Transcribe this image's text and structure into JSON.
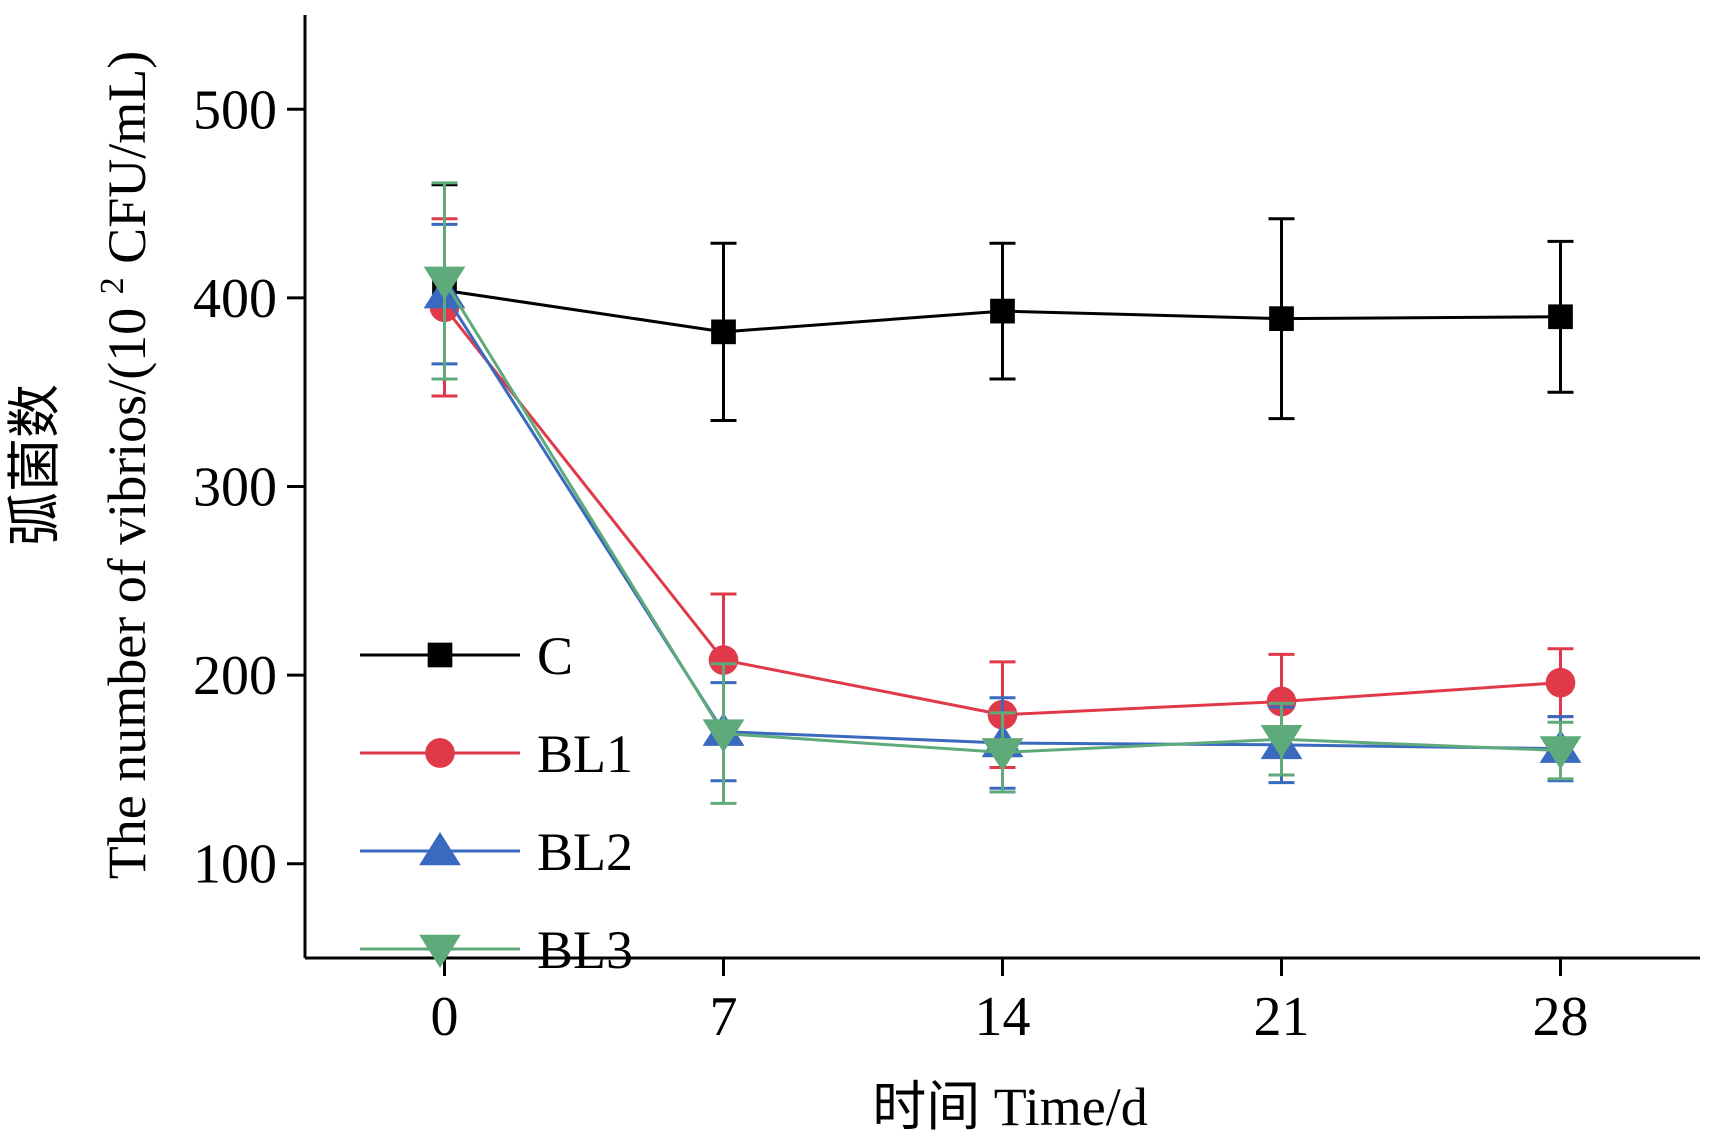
{
  "chart_data": {
    "type": "line",
    "xlabel": "时间 Time/d",
    "ylabel": {
      "prefix": "The number of vibrios/(10 ",
      "sup": "2",
      "suffix": " CFU/mL)",
      "line2": "弧菌数"
    },
    "x": [
      0,
      7,
      14,
      21,
      28
    ],
    "x_tick_labels": [
      "0",
      "7",
      "14",
      "21",
      "28"
    ],
    "xlim": [
      -3.5,
      31.5
    ],
    "ylim": [
      50,
      550
    ],
    "y_ticks": [
      100,
      200,
      300,
      400,
      500
    ],
    "y_tick_labels": [
      "100",
      "200",
      "300",
      "400",
      "500"
    ],
    "grid": false,
    "legend_position": "lower-left",
    "series": [
      {
        "name": "C",
        "color": "#000000",
        "marker": "square",
        "values": [
          404,
          382,
          393,
          389,
          390
        ],
        "errors": [
          56,
          47,
          36,
          53,
          40
        ]
      },
      {
        "name": "BL1",
        "color": "#e03a4a",
        "marker": "circle",
        "values": [
          395,
          208,
          179,
          186,
          196
        ],
        "errors": [
          47,
          35,
          28,
          25,
          18
        ]
      },
      {
        "name": "BL2",
        "color": "#3a6ac0",
        "marker": "triangle-up",
        "values": [
          402,
          170,
          164,
          163,
          161
        ],
        "errors": [
          37,
          26,
          24,
          20,
          17
        ]
      },
      {
        "name": "BL3",
        "color": "#5faa7a",
        "marker": "triangle-down",
        "values": [
          409,
          169,
          159,
          166,
          160
        ],
        "errors": [
          52,
          37,
          21,
          19,
          15
        ]
      }
    ]
  }
}
